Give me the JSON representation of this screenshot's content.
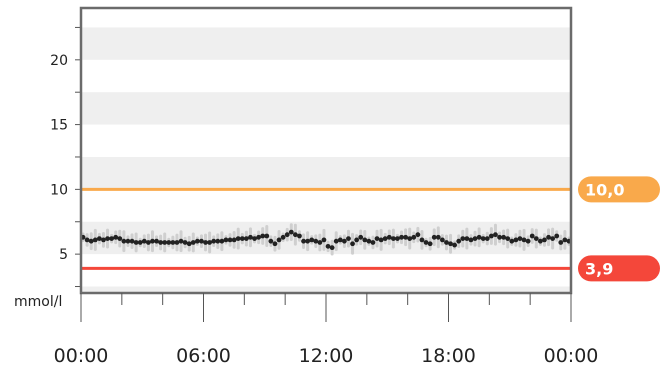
{
  "chart_data": {
    "type": "scatter",
    "title": "",
    "unit_label": "mmol/l",
    "ylim": [
      2,
      24
    ],
    "y_ticks": [
      5,
      10,
      15,
      20
    ],
    "x_ticks": [
      "00:00",
      "06:00",
      "12:00",
      "18:00",
      "00:00"
    ],
    "xlim_hours": [
      0,
      24
    ],
    "grid": "alternating horizontal bands every 2.5 mmol/l",
    "thresholds": [
      {
        "label": "10,0",
        "value": 10.0,
        "color": "#f9a94b"
      },
      {
        "label": "3,9",
        "value": 3.9,
        "color": "#f4473a"
      }
    ],
    "series": [
      {
        "values": [
          [
            0.1,
            6.3
          ],
          [
            0.3,
            6.1
          ],
          [
            0.5,
            6.0
          ],
          [
            0.7,
            6.1
          ],
          [
            0.9,
            6.2
          ],
          [
            1.1,
            6.1
          ],
          [
            1.3,
            6.2
          ],
          [
            1.5,
            6.2
          ],
          [
            1.7,
            6.3
          ],
          [
            1.9,
            6.2
          ],
          [
            2.1,
            6.0
          ],
          [
            2.3,
            6.0
          ],
          [
            2.5,
            6.0
          ],
          [
            2.7,
            5.9
          ],
          [
            2.9,
            5.9
          ],
          [
            3.1,
            6.0
          ],
          [
            3.3,
            5.9
          ],
          [
            3.5,
            6.0
          ],
          [
            3.7,
            6.0
          ],
          [
            3.9,
            5.9
          ],
          [
            4.1,
            5.9
          ],
          [
            4.3,
            5.9
          ],
          [
            4.5,
            5.9
          ],
          [
            4.7,
            5.9
          ],
          [
            4.9,
            6.0
          ],
          [
            5.1,
            5.9
          ],
          [
            5.3,
            5.8
          ],
          [
            5.5,
            5.9
          ],
          [
            5.7,
            6.0
          ],
          [
            5.9,
            6.0
          ],
          [
            6.1,
            5.9
          ],
          [
            6.3,
            5.9
          ],
          [
            6.5,
            6.0
          ],
          [
            6.7,
            6.0
          ],
          [
            6.9,
            6.0
          ],
          [
            7.1,
            6.1
          ],
          [
            7.3,
            6.1
          ],
          [
            7.5,
            6.1
          ],
          [
            7.7,
            6.2
          ],
          [
            7.9,
            6.2
          ],
          [
            8.1,
            6.2
          ],
          [
            8.3,
            6.3
          ],
          [
            8.5,
            6.2
          ],
          [
            8.7,
            6.3
          ],
          [
            8.9,
            6.4
          ],
          [
            9.1,
            6.4
          ],
          [
            9.3,
            6.0
          ],
          [
            9.5,
            5.8
          ],
          [
            9.7,
            6.1
          ],
          [
            9.9,
            6.3
          ],
          [
            10.1,
            6.5
          ],
          [
            10.3,
            6.7
          ],
          [
            10.5,
            6.5
          ],
          [
            10.7,
            6.4
          ],
          [
            10.9,
            6.0
          ],
          [
            11.1,
            6.0
          ],
          [
            11.3,
            6.1
          ],
          [
            11.5,
            6.0
          ],
          [
            11.7,
            5.9
          ],
          [
            11.9,
            6.1
          ],
          [
            12.1,
            5.6
          ],
          [
            12.3,
            5.5
          ],
          [
            12.5,
            6.0
          ],
          [
            12.7,
            6.1
          ],
          [
            12.9,
            6.0
          ],
          [
            13.1,
            6.2
          ],
          [
            13.3,
            5.8
          ],
          [
            13.5,
            6.1
          ],
          [
            13.7,
            6.3
          ],
          [
            13.9,
            6.1
          ],
          [
            14.1,
            6.0
          ],
          [
            14.3,
            5.9
          ],
          [
            14.5,
            6.2
          ],
          [
            14.7,
            6.1
          ],
          [
            14.9,
            6.2
          ],
          [
            15.1,
            6.3
          ],
          [
            15.3,
            6.2
          ],
          [
            15.5,
            6.2
          ],
          [
            15.7,
            6.3
          ],
          [
            15.9,
            6.3
          ],
          [
            16.1,
            6.2
          ],
          [
            16.3,
            6.3
          ],
          [
            16.5,
            6.5
          ],
          [
            16.7,
            6.1
          ],
          [
            16.9,
            5.9
          ],
          [
            17.1,
            5.8
          ],
          [
            17.3,
            6.3
          ],
          [
            17.5,
            6.3
          ],
          [
            17.7,
            6.1
          ],
          [
            17.9,
            5.9
          ],
          [
            18.1,
            5.8
          ],
          [
            18.3,
            5.7
          ],
          [
            18.5,
            6.0
          ],
          [
            18.7,
            6.2
          ],
          [
            18.9,
            6.2
          ],
          [
            19.1,
            6.1
          ],
          [
            19.3,
            6.2
          ],
          [
            19.5,
            6.3
          ],
          [
            19.7,
            6.2
          ],
          [
            19.9,
            6.2
          ],
          [
            20.1,
            6.4
          ],
          [
            20.3,
            6.5
          ],
          [
            20.5,
            6.3
          ],
          [
            20.7,
            6.3
          ],
          [
            20.9,
            6.2
          ],
          [
            21.1,
            6.0
          ],
          [
            21.3,
            6.1
          ],
          [
            21.5,
            6.2
          ],
          [
            21.7,
            6.1
          ],
          [
            21.9,
            6.0
          ],
          [
            22.1,
            6.4
          ],
          [
            22.3,
            6.2
          ],
          [
            22.5,
            6.0
          ],
          [
            22.7,
            6.1
          ],
          [
            22.9,
            6.3
          ],
          [
            23.1,
            6.2
          ],
          [
            23.3,
            6.4
          ],
          [
            23.5,
            5.9
          ],
          [
            23.7,
            6.1
          ],
          [
            23.9,
            6.0
          ]
        ]
      }
    ]
  }
}
